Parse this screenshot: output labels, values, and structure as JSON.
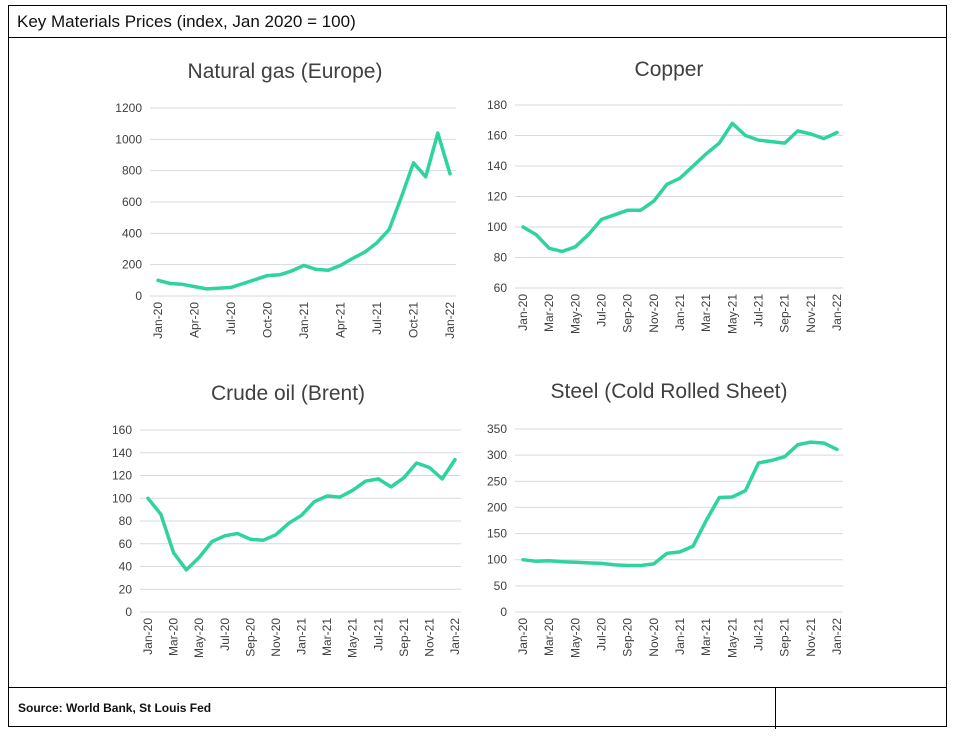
{
  "header": {
    "title": "Key Materials Prices (index, Jan 2020 = 100)"
  },
  "footer": {
    "source": "Source:  World Bank, St Louis Fed"
  },
  "colors": {
    "line": "#2ed3a0",
    "grid": "#d9d9d9",
    "text": "#404040"
  },
  "chart_data": [
    {
      "type": "line",
      "title": "Natural gas (Europe)",
      "xlabel": "",
      "ylabel": "",
      "ylim": [
        0,
        1200
      ],
      "yticks": [
        0,
        200,
        400,
        600,
        800,
        1000,
        1200
      ],
      "x": [
        "Jan-20",
        "Feb-20",
        "Mar-20",
        "Apr-20",
        "May-20",
        "Jun-20",
        "Jul-20",
        "Aug-20",
        "Sep-20",
        "Oct-20",
        "Nov-20",
        "Dec-20",
        "Jan-21",
        "Feb-21",
        "Mar-21",
        "Apr-21",
        "May-21",
        "Jun-21",
        "Jul-21",
        "Aug-21",
        "Sep-21",
        "Oct-21",
        "Nov-21",
        "Dec-21",
        "Jan-22"
      ],
      "xtick_labels": [
        "Jan-20",
        "Apr-20",
        "Jul-20",
        "Oct-20",
        "Jan-21",
        "Apr-21",
        "Jul-21",
        "Oct-21",
        "Jan-22"
      ],
      "series": [
        {
          "values": [
            100,
            80,
            75,
            60,
            45,
            50,
            55,
            80,
            105,
            130,
            135,
            160,
            195,
            170,
            165,
            195,
            240,
            280,
            340,
            425,
            630,
            850,
            760,
            1040,
            780
          ]
        }
      ]
    },
    {
      "type": "line",
      "title": "Copper",
      "xlabel": "",
      "ylabel": "",
      "ylim": [
        60,
        180
      ],
      "yticks": [
        60,
        80,
        100,
        120,
        140,
        160,
        180
      ],
      "x": [
        "Jan-20",
        "Feb-20",
        "Mar-20",
        "Apr-20",
        "May-20",
        "Jun-20",
        "Jul-20",
        "Aug-20",
        "Sep-20",
        "Oct-20",
        "Nov-20",
        "Dec-20",
        "Jan-21",
        "Feb-21",
        "Mar-21",
        "Apr-21",
        "May-21",
        "Jun-21",
        "Jul-21",
        "Aug-21",
        "Sep-21",
        "Oct-21",
        "Nov-21",
        "Dec-21",
        "Jan-22"
      ],
      "xtick_labels": [
        "Jan-20",
        "Mar-20",
        "May-20",
        "Jul-20",
        "Sep-20",
        "Nov-20",
        "Jan-21",
        "Mar-21",
        "May-21",
        "Jul-21",
        "Sep-21",
        "Nov-21",
        "Jan-22"
      ],
      "series": [
        {
          "values": [
            100,
            95,
            86,
            84,
            87,
            95,
            105,
            108,
            111,
            111,
            117,
            128,
            132,
            140,
            148,
            155,
            168,
            160,
            157,
            156,
            155,
            163,
            161,
            158,
            162
          ]
        }
      ]
    },
    {
      "type": "line",
      "title": "Crude oil (Brent)",
      "xlabel": "",
      "ylabel": "",
      "ylim": [
        0,
        160
      ],
      "yticks": [
        0,
        20,
        40,
        60,
        80,
        100,
        120,
        140,
        160
      ],
      "x": [
        "Jan-20",
        "Feb-20",
        "Mar-20",
        "Apr-20",
        "May-20",
        "Jun-20",
        "Jul-20",
        "Aug-20",
        "Sep-20",
        "Oct-20",
        "Nov-20",
        "Dec-20",
        "Jan-21",
        "Feb-21",
        "Mar-21",
        "Apr-21",
        "May-21",
        "Jun-21",
        "Jul-21",
        "Aug-21",
        "Sep-21",
        "Oct-21",
        "Nov-21",
        "Dec-21",
        "Jan-22"
      ],
      "xtick_labels": [
        "Jan-20",
        "Mar-20",
        "May-20",
        "Jul-20",
        "Sep-20",
        "Nov-20",
        "Jan-21",
        "Mar-21",
        "May-21",
        "Jul-21",
        "Sep-21",
        "Nov-21",
        "Jan-22"
      ],
      "series": [
        {
          "values": [
            100,
            86,
            52,
            37,
            48,
            62,
            67,
            69,
            64,
            63,
            68,
            78,
            85,
            97,
            102,
            101,
            107,
            115,
            117,
            110,
            118,
            131,
            127,
            117,
            134
          ]
        }
      ]
    },
    {
      "type": "line",
      "title": "Steel (Cold Rolled Sheet)",
      "xlabel": "",
      "ylabel": "",
      "ylim": [
        0,
        350
      ],
      "yticks": [
        0,
        50,
        100,
        150,
        200,
        250,
        300,
        350
      ],
      "x": [
        "Jan-20",
        "Feb-20",
        "Mar-20",
        "Apr-20",
        "May-20",
        "Jun-20",
        "Jul-20",
        "Aug-20",
        "Sep-20",
        "Oct-20",
        "Nov-20",
        "Dec-20",
        "Jan-21",
        "Feb-21",
        "Mar-21",
        "Apr-21",
        "May-21",
        "Jun-21",
        "Jul-21",
        "Aug-21",
        "Sep-21",
        "Oct-21",
        "Nov-21",
        "Dec-21",
        "Jan-22"
      ],
      "xtick_labels": [
        "Jan-20",
        "Mar-20",
        "May-20",
        "Jul-20",
        "Sep-20",
        "Nov-20",
        "Jan-21",
        "Mar-21",
        "May-21",
        "Jul-21",
        "Sep-21",
        "Nov-21",
        "Jan-22"
      ],
      "series": [
        {
          "values": [
            100,
            97,
            98,
            96,
            95,
            94,
            93,
            90,
            89,
            89,
            92,
            112,
            115,
            126,
            175,
            219,
            220,
            232,
            285,
            290,
            297,
            320,
            325,
            323,
            311
          ]
        }
      ]
    }
  ]
}
